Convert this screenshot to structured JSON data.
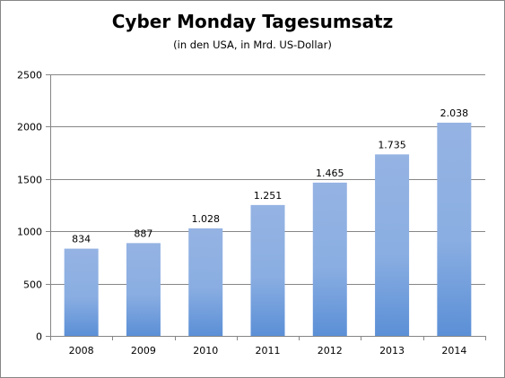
{
  "chart_data": {
    "type": "bar",
    "title": "Cyber Monday Tagesumsatz",
    "subtitle": "(in den USA, in Mrd. US-Dollar)",
    "xlabel": "",
    "ylabel": "",
    "categories": [
      "2008",
      "2009",
      "2010",
      "2011",
      "2012",
      "2013",
      "2014"
    ],
    "values": [
      834,
      887,
      1028,
      1251,
      1465,
      1735,
      2038
    ],
    "data_labels": [
      "834",
      "887",
      "1.028",
      "1.251",
      "1.465",
      "1.735",
      "2.038"
    ],
    "ylim": [
      0,
      2500
    ],
    "yticks": [
      "0",
      "500",
      "1000",
      "1500",
      "2000",
      "2500"
    ],
    "ytick_values": [
      0,
      500,
      1000,
      1500,
      2000,
      2500
    ],
    "grid": true,
    "legend": "none",
    "colors": {
      "bar_top": "#95b3e3",
      "bar_bottom": "#5b8fd6",
      "grid": "#868686",
      "axis": "#868686"
    }
  }
}
